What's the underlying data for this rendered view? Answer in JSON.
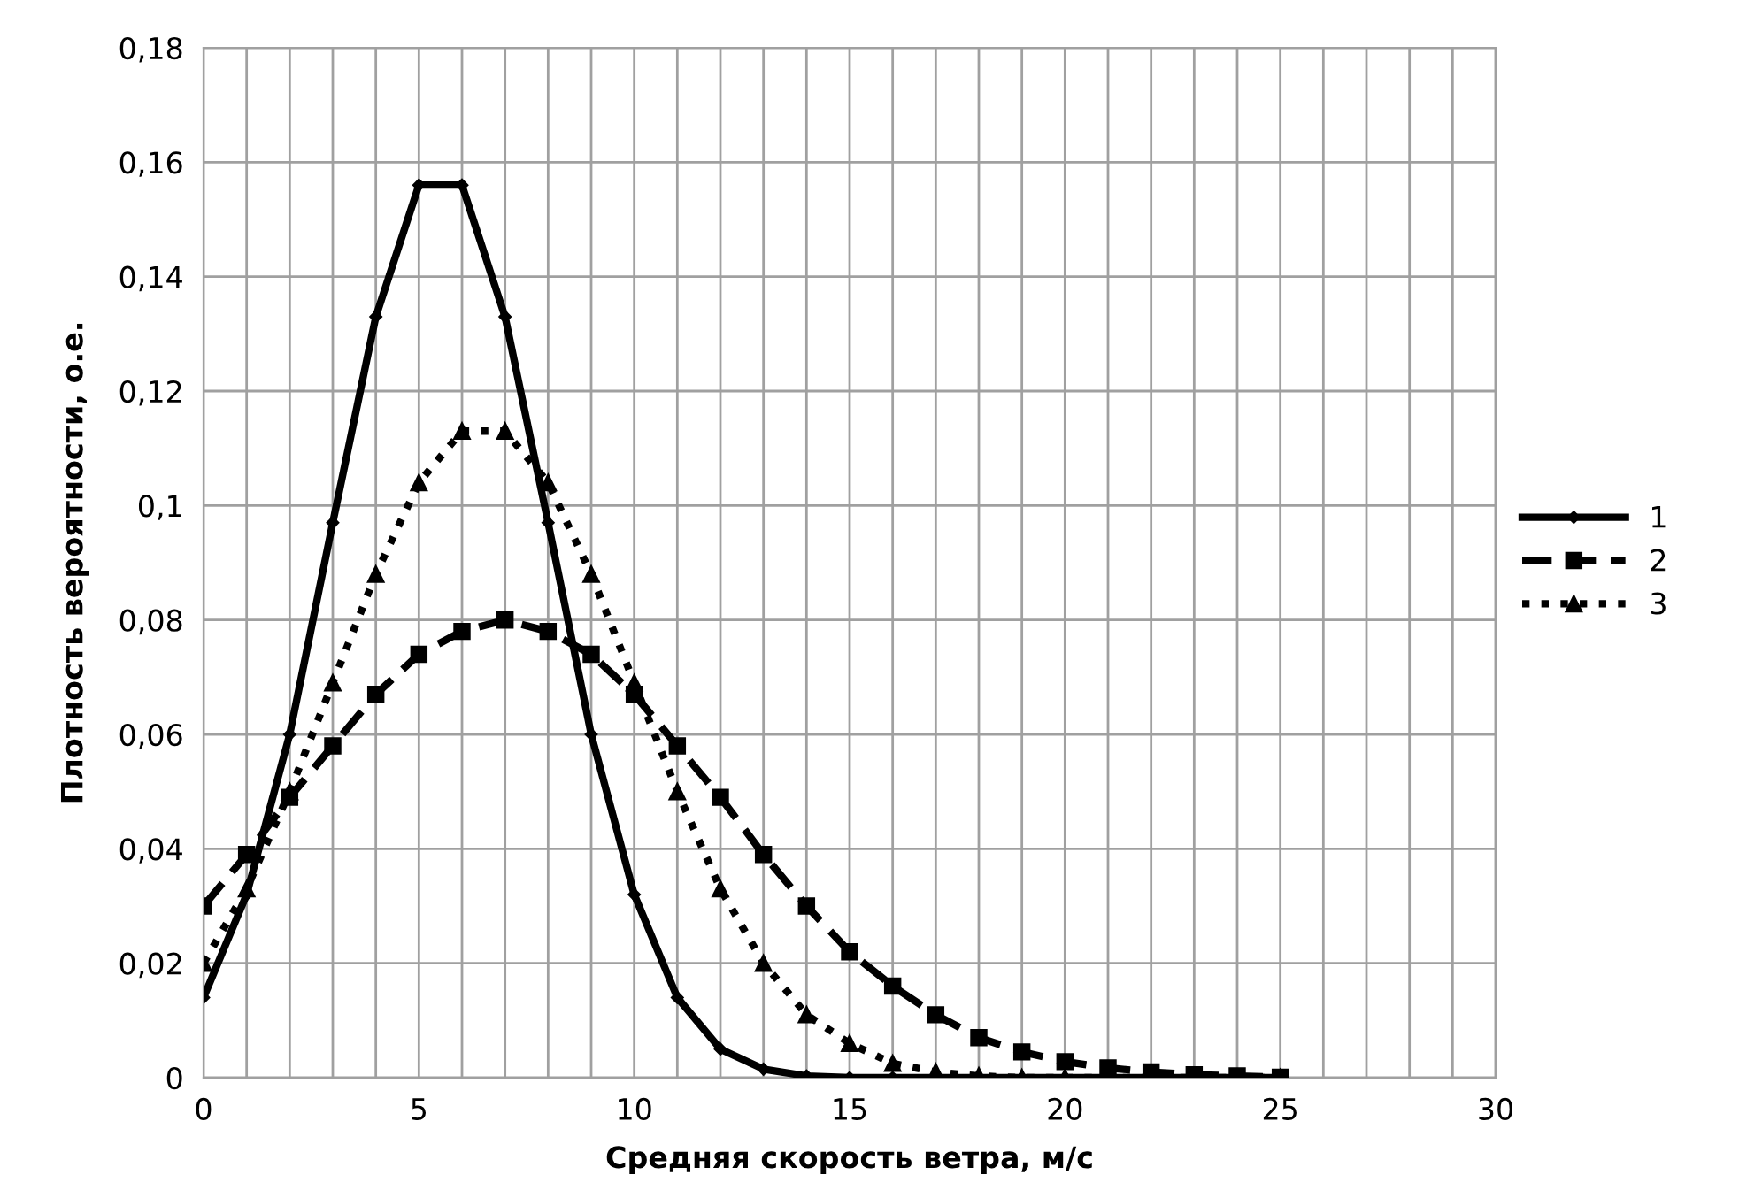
{
  "chart_data": {
    "type": "line",
    "xlabel": "Средняя скорость ветра, м/с",
    "ylabel": "Плотность вероятности, о.е.",
    "x": [
      0,
      1,
      2,
      3,
      4,
      5,
      6,
      7,
      8,
      9,
      10,
      11,
      12,
      13,
      14,
      15,
      16,
      17,
      18,
      19,
      20,
      21,
      22,
      23,
      24,
      25
    ],
    "series": [
      {
        "name": "1",
        "color": "#000000",
        "marker": "diamond",
        "line_style": "solid",
        "values": [
          0.014,
          0.032,
          0.06,
          0.097,
          0.133,
          0.156,
          0.156,
          0.133,
          0.097,
          0.06,
          0.032,
          0.014,
          0.005,
          0.0015,
          0.0003,
          0,
          0,
          0,
          0,
          0,
          0,
          0,
          0,
          0,
          0,
          0
        ]
      },
      {
        "name": "2",
        "color": "#000000",
        "marker": "square",
        "line_style": "dashed",
        "values": [
          0.03,
          0.039,
          0.049,
          0.058,
          0.067,
          0.074,
          0.078,
          0.08,
          0.078,
          0.074,
          0.067,
          0.058,
          0.049,
          0.039,
          0.03,
          0.022,
          0.016,
          0.011,
          0.007,
          0.0045,
          0.0028,
          0.0017,
          0.001,
          0.0005,
          0.0003,
          0.0001
        ]
      },
      {
        "name": "3",
        "color": "#000000",
        "marker": "triangle",
        "line_style": "dotted",
        "values": [
          0.02,
          0.033,
          0.05,
          0.069,
          0.088,
          0.104,
          0.113,
          0.113,
          0.104,
          0.088,
          0.069,
          0.05,
          0.033,
          0.02,
          0.011,
          0.006,
          0.0025,
          0.001,
          0.0003,
          0,
          0,
          0,
          0,
          0,
          0,
          0
        ]
      }
    ],
    "xlim": [
      0,
      30
    ],
    "xticks": [
      0,
      {
        "value": 1,
        "label": null
      },
      {
        "value": 2,
        "label": null
      },
      {
        "value": 3,
        "label": null
      },
      {
        "value": 4,
        "label": null
      },
      5,
      {
        "value": 6,
        "label": null
      },
      {
        "value": 7,
        "label": null
      },
      {
        "value": 8,
        "label": null
      },
      {
        "value": 9,
        "label": null
      },
      10,
      {
        "value": 11,
        "label": null
      },
      {
        "value": 12,
        "label": null
      },
      {
        "value": 13,
        "label": null
      },
      {
        "value": 14,
        "label": null
      },
      15,
      {
        "value": 16,
        "label": null
      },
      {
        "value": 17,
        "label": null
      },
      {
        "value": 18,
        "label": null
      },
      {
        "value": 19,
        "label": null
      },
      20,
      {
        "value": 21,
        "label": null
      },
      {
        "value": 22,
        "label": null
      },
      {
        "value": 23,
        "label": null
      },
      {
        "value": 24,
        "label": null
      },
      25,
      {
        "value": 26,
        "label": null
      },
      {
        "value": 27,
        "label": null
      },
      {
        "value": 28,
        "label": null
      },
      {
        "value": 29,
        "label": null
      },
      30
    ],
    "ylim": [
      0,
      0.18
    ],
    "yticks": [
      0,
      {
        "value": 0.02,
        "label": "0,02"
      },
      {
        "value": 0.04,
        "label": "0,04"
      },
      {
        "value": 0.06,
        "label": "0,06"
      },
      {
        "value": 0.08,
        "label": "0,08"
      },
      {
        "value": 0.1,
        "label": "0,1"
      },
      {
        "value": 0.12,
        "label": "0,12"
      },
      {
        "value": 0.14,
        "label": "0,14"
      },
      {
        "value": 0.16,
        "label": "0,16"
      },
      {
        "value": 0.18,
        "label": "0,18"
      }
    ],
    "grid": true,
    "legend": "right"
  }
}
